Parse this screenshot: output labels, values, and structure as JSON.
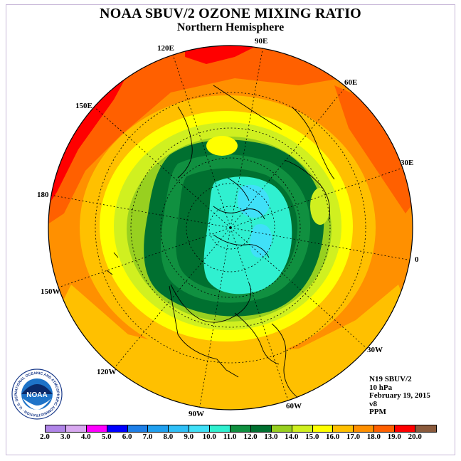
{
  "header": {
    "title": "NOAA SBUV/2 OZONE MIXING RATIO",
    "subtitle": "Northern Hemisphere"
  },
  "map": {
    "projection": "north-polar-stereographic",
    "longitude_labels": [
      "90E",
      "60E",
      "30E",
      "0",
      "30W",
      "60W",
      "90W",
      "120W",
      "150W",
      "180",
      "150E",
      "120E"
    ],
    "contour_levels": [
      "2.0",
      "3.0",
      "4.0",
      "5.0",
      "6.0",
      "7.0",
      "8.0",
      "9.0",
      "10.0",
      "11.0",
      "12.0",
      "13.0",
      "14.0",
      "15.0",
      "16.0",
      "17.0",
      "18.0",
      "19.0",
      "20.0"
    ],
    "colors": [
      "#b085e8",
      "#d8a8f0",
      "#ff00ff",
      "#0000ff",
      "#1e7fe8",
      "#20a0f0",
      "#30c0f8",
      "#40e0f8",
      "#30f0d0",
      "#109040",
      "#007030",
      "#98d020",
      "#d0f020",
      "#ffff00",
      "#ffc000",
      "#ff9000",
      "#ff6000",
      "#ff0000",
      "#8b5a3c"
    ]
  },
  "info": {
    "satellite": "N19 SBUV/2",
    "pressure": "10 hPa",
    "date": "February 19, 2015",
    "version": "v8",
    "units": "PPM"
  },
  "logo": {
    "text": "NOAA",
    "ring_text": "NATIONAL OCEANIC AND ATMOSPHERIC ADMINISTRATION · U.S. DEPARTMENT OF COMMERCE ·"
  }
}
